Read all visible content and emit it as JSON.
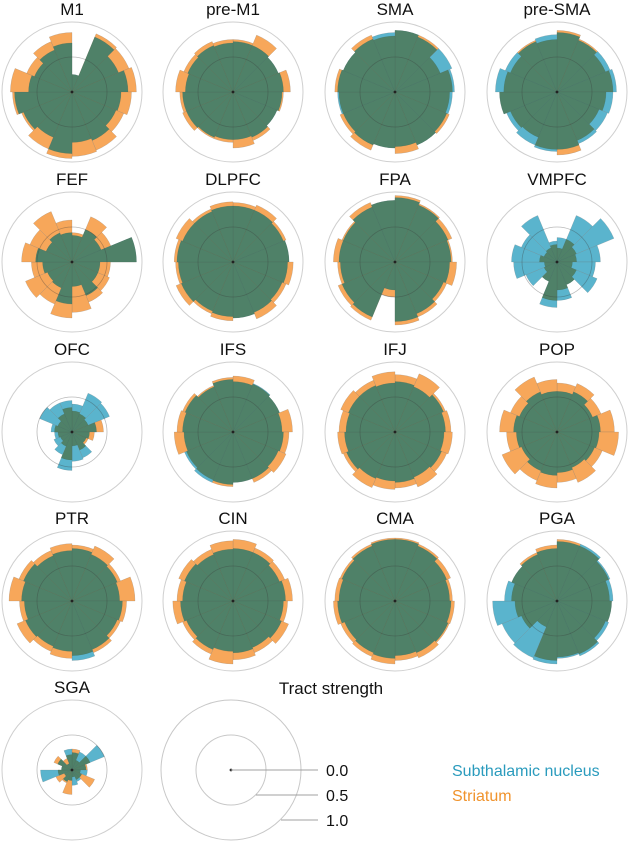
{
  "chart_data": {
    "type": "polar-bar",
    "figure_title": "Tract strength",
    "scale_ticks": [
      0.0,
      0.5,
      1.0
    ],
    "scale_tick_labels": [
      "0.0",
      "0.5",
      "1.0"
    ],
    "radial_range": [
      0,
      1
    ],
    "sectors_per_polar": 16,
    "legend": {
      "placement": "bottom-right",
      "entries": [
        {
          "name": "Subthalamic nucleus",
          "color": "#5ab4cd"
        },
        {
          "name": "Striatum",
          "color": "#f7a75a"
        }
      ]
    },
    "overlap_color": "#4f8168",
    "charts": [
      {
        "title": "M1",
        "stn": [
          0.25,
          0.85,
          0.72,
          0.8,
          0.7,
          0.68,
          0.75,
          0.72,
          0.88,
          0.7,
          0.75,
          0.82,
          0.62,
          0.58,
          0.65,
          0.7
        ],
        "str": [
          0.25,
          0.9,
          0.88,
          0.92,
          0.85,
          0.8,
          0.9,
          0.92,
          0.95,
          0.88,
          0.78,
          0.85,
          0.88,
          0.7,
          0.78,
          0.85
        ]
      },
      {
        "title": "pre-M1",
        "stn": [
          0.72,
          0.72,
          0.7,
          0.72,
          0.7,
          0.68,
          0.7,
          0.68,
          0.68,
          0.7,
          0.72,
          0.72,
          0.68,
          0.7,
          0.72,
          0.7
        ],
        "str": [
          0.75,
          0.88,
          0.7,
          0.82,
          0.72,
          0.68,
          0.75,
          0.8,
          0.72,
          0.72,
          0.78,
          0.76,
          0.82,
          0.76,
          0.78,
          0.75
        ]
      },
      {
        "title": "SMA",
        "stn": [
          0.88,
          0.85,
          0.88,
          0.85,
          0.82,
          0.8,
          0.82,
          0.78,
          0.8,
          0.82,
          0.8,
          0.82,
          0.82,
          0.8,
          0.82,
          0.85
        ],
        "str": [
          0.88,
          0.88,
          0.7,
          0.82,
          0.78,
          0.84,
          0.82,
          0.88,
          0.8,
          0.9,
          0.85,
          0.8,
          0.86,
          0.8,
          0.88,
          0.8
        ]
      },
      {
        "title": "pre-SMA",
        "stn": [
          0.85,
          0.8,
          0.82,
          0.85,
          0.8,
          0.78,
          0.8,
          0.82,
          0.85,
          0.82,
          0.78,
          0.82,
          0.88,
          0.8,
          0.78,
          0.82
        ],
        "str": [
          0.88,
          0.82,
          0.75,
          0.8,
          0.7,
          0.65,
          0.75,
          0.9,
          0.82,
          0.7,
          0.72,
          0.82,
          0.76,
          0.72,
          0.8,
          0.75
        ]
      },
      {
        "title": "FEF",
        "stn": [
          0.38,
          0.5,
          0.45,
          0.92,
          0.4,
          0.4,
          0.52,
          0.35,
          0.6,
          0.4,
          0.38,
          0.42,
          0.52,
          0.4,
          0.45,
          0.42
        ],
        "str": [
          0.42,
          0.7,
          0.6,
          0.92,
          0.55,
          0.58,
          0.62,
          0.72,
          0.8,
          0.65,
          0.72,
          0.58,
          0.72,
          0.65,
          0.78,
          0.6
        ]
      },
      {
        "title": "DLPFC",
        "stn": [
          0.8,
          0.8,
          0.78,
          0.8,
          0.78,
          0.76,
          0.78,
          0.8,
          0.78,
          0.76,
          0.8,
          0.78,
          0.8,
          0.78,
          0.78,
          0.8
        ],
        "str": [
          0.85,
          0.88,
          0.82,
          0.8,
          0.86,
          0.82,
          0.88,
          0.8,
          0.84,
          0.8,
          0.88,
          0.82,
          0.84,
          0.88,
          0.82,
          0.86
        ]
      },
      {
        "title": "FPA",
        "stn": [
          0.92,
          0.88,
          0.82,
          0.8,
          0.78,
          0.75,
          0.8,
          0.85,
          0.4,
          0.85,
          0.82,
          0.78,
          0.8,
          0.8,
          0.85,
          0.88
        ],
        "str": [
          0.95,
          0.9,
          0.88,
          0.82,
          0.88,
          0.8,
          0.85,
          0.9,
          0.5,
          0.9,
          0.88,
          0.82,
          0.88,
          0.82,
          0.92,
          0.88
        ]
      },
      {
        "title": "VMPFC",
        "stn": [
          0.35,
          0.72,
          0.88,
          0.62,
          0.55,
          0.62,
          0.35,
          0.55,
          0.65,
          0.3,
          0.48,
          0.62,
          0.65,
          0.55,
          0.72,
          0.3
        ],
        "str": [
          0.2,
          0.35,
          0.3,
          0.28,
          0.22,
          0.3,
          0.35,
          0.4,
          0.55,
          0.3,
          0.2,
          0.18,
          0.25,
          0.2,
          0.22,
          0.25
        ]
      },
      {
        "title": "OFC",
        "stn": [
          0.4,
          0.6,
          0.58,
          0.35,
          0.25,
          0.22,
          0.4,
          0.42,
          0.55,
          0.35,
          0.28,
          0.25,
          0.3,
          0.5,
          0.45,
          0.45
        ],
        "str": [
          0.3,
          0.28,
          0.25,
          0.45,
          0.32,
          0.25,
          0.28,
          0.2,
          0.4,
          0.22,
          0.18,
          0.2,
          0.25,
          0.22,
          0.28,
          0.35
        ]
      },
      {
        "title": "IFS",
        "stn": [
          0.72,
          0.75,
          0.72,
          0.7,
          0.72,
          0.7,
          0.72,
          0.72,
          0.75,
          0.78,
          0.75,
          0.7,
          0.72,
          0.74,
          0.7,
          0.75
        ],
        "str": [
          0.8,
          0.74,
          0.72,
          0.85,
          0.8,
          0.82,
          0.78,
          0.72,
          0.78,
          0.74,
          0.72,
          0.84,
          0.8,
          0.78,
          0.72,
          0.78
        ]
      },
      {
        "title": "IFJ",
        "stn": [
          0.72,
          0.7,
          0.75,
          0.72,
          0.7,
          0.72,
          0.7,
          0.72,
          0.7,
          0.72,
          0.75,
          0.72,
          0.7,
          0.72,
          0.72,
          0.7
        ],
        "str": [
          0.82,
          0.9,
          0.78,
          0.8,
          0.82,
          0.8,
          0.85,
          0.8,
          0.82,
          0.86,
          0.8,
          0.82,
          0.8,
          0.84,
          0.8,
          0.86
        ]
      },
      {
        "title": "POP",
        "stn": [
          0.58,
          0.62,
          0.55,
          0.62,
          0.6,
          0.58,
          0.55,
          0.58,
          0.62,
          0.6,
          0.55,
          0.58,
          0.62,
          0.58,
          0.62,
          0.58
        ],
        "str": [
          0.7,
          0.75,
          0.68,
          0.82,
          0.88,
          0.7,
          0.78,
          0.72,
          0.8,
          0.75,
          0.85,
          0.72,
          0.82,
          0.72,
          0.85,
          0.75
        ]
      },
      {
        "title": "PTR",
        "stn": [
          0.75,
          0.72,
          0.7,
          0.68,
          0.72,
          0.7,
          0.75,
          0.85,
          0.72,
          0.7,
          0.72,
          0.68,
          0.72,
          0.75,
          0.7,
          0.72
        ],
        "str": [
          0.8,
          0.85,
          0.75,
          0.9,
          0.78,
          0.75,
          0.8,
          0.78,
          0.82,
          0.78,
          0.85,
          0.75,
          0.9,
          0.82,
          0.78,
          0.82
        ]
      },
      {
        "title": "CIN",
        "stn": [
          0.75,
          0.75,
          0.72,
          0.75,
          0.72,
          0.75,
          0.72,
          0.74,
          0.72,
          0.75,
          0.72,
          0.75,
          0.72,
          0.75,
          0.72,
          0.74
        ],
        "str": [
          0.88,
          0.82,
          0.8,
          0.85,
          0.78,
          0.86,
          0.8,
          0.84,
          0.9,
          0.82,
          0.78,
          0.86,
          0.8,
          0.84,
          0.8,
          0.86
        ]
      },
      {
        "title": "CMA",
        "stn": [
          0.88,
          0.85,
          0.8,
          0.78,
          0.8,
          0.82,
          0.8,
          0.78,
          0.82,
          0.8,
          0.78,
          0.82,
          0.8,
          0.82,
          0.85,
          0.88
        ],
        "str": [
          0.9,
          0.88,
          0.86,
          0.82,
          0.85,
          0.84,
          0.88,
          0.85,
          0.9,
          0.86,
          0.84,
          0.88,
          0.86,
          0.85,
          0.88,
          0.9
        ]
      },
      {
        "title": "PGA",
        "stn": [
          0.85,
          0.88,
          0.82,
          0.8,
          0.78,
          0.8,
          0.85,
          0.82,
          0.9,
          0.88,
          0.85,
          0.92,
          0.75,
          0.7,
          0.72,
          0.75
        ],
        "str": [
          0.88,
          0.85,
          0.8,
          0.75,
          0.78,
          0.75,
          0.82,
          0.8,
          0.85,
          0.4,
          0.55,
          0.6,
          0.65,
          0.7,
          0.75,
          0.8
        ]
      },
      {
        "title": "SGA",
        "stn": [
          0.25,
          0.28,
          0.5,
          0.2,
          0.22,
          0.15,
          0.18,
          0.22,
          0.15,
          0.18,
          0.12,
          0.45,
          0.15,
          0.22,
          0.1,
          0.3
        ],
        "str": [
          0.3,
          0.15,
          0.28,
          0.22,
          0.12,
          0.35,
          0.15,
          0.1,
          0.35,
          0.2,
          0.25,
          0.2,
          0.15,
          0.28,
          0.18,
          0.22
        ]
      }
    ]
  }
}
